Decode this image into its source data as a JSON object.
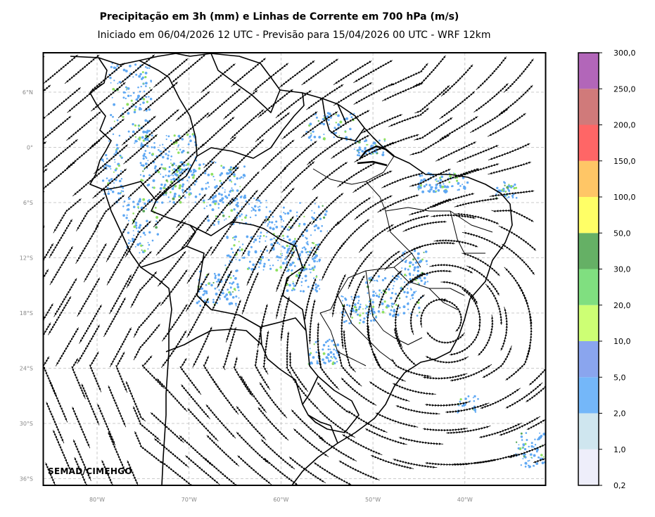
{
  "title": "Precipitação em 3h (mm) e Linhas de Corrente em 700 hPa (m/s)",
  "subtitle": "Iniciado em 06/04/2026 12 UTC - Previsão para 15/04/2026 00 UTC - WRF 12km",
  "credit": "SEMAD/CIMEHGO",
  "map": {
    "lat_labels": [
      "6°N",
      "0°",
      "6°S",
      "12°S",
      "18°S",
      "24°S",
      "30°S",
      "36°S"
    ],
    "lon_labels": [
      "80°W",
      "70°W",
      "60°W",
      "50°W",
      "40°W"
    ],
    "lat_values": [
      6,
      0,
      -6,
      -12,
      -18,
      -24,
      -30,
      -36
    ],
    "lon_values": [
      -80,
      -70,
      -60,
      -50,
      -40
    ],
    "gridline_style": "dashed",
    "tick_label_color": "#888888"
  },
  "colorbar": {
    "levels": [
      "0,2",
      "1,0",
      "2,0",
      "5,0",
      "10,0",
      "20,0",
      "30,0",
      "50,0",
      "100,0",
      "150,0",
      "200,0",
      "250,0",
      "300,0"
    ],
    "colors": [
      "#eeeefa",
      "#cfe6ef",
      "#74b7f9",
      "#8aa5ee",
      "#cdff74",
      "#80df80",
      "#65b065",
      "#ffff66",
      "#ffc666",
      "#ff6666",
      "#d07a7a",
      "#b266b9"
    ]
  },
  "precip_colors": {
    "light": "#5fa8f3",
    "moderate": "#8ee060",
    "heavy": "#5aa85a"
  }
}
